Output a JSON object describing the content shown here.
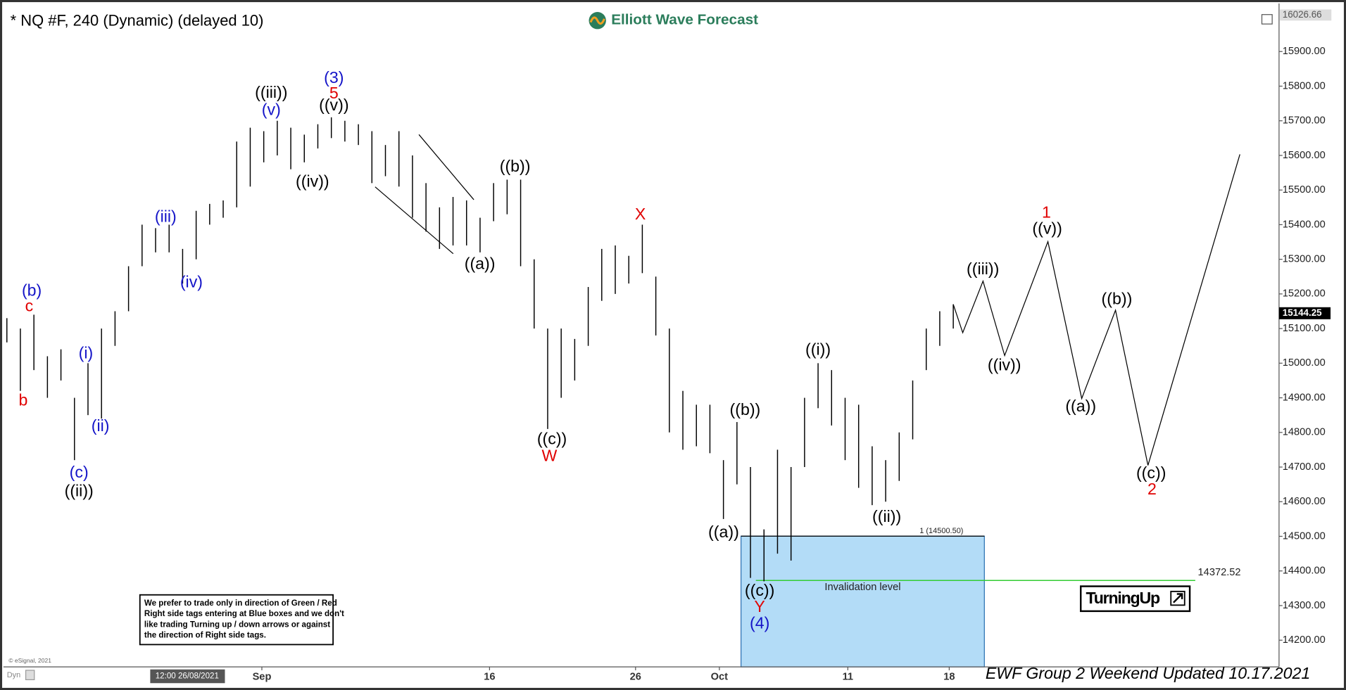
{
  "chart_data": {
    "type": "ohlc",
    "title": "* NQ #F, 240 (Dynamic) (delayed 10)",
    "logo": "Elliott Wave Forecast",
    "xlim": [
      0,
      94
    ],
    "ylim": [
      14123,
      16029
    ],
    "xticks": [
      {
        "value": 18.86,
        "label": "Sep"
      },
      {
        "value": 35.7,
        "label": "16"
      },
      {
        "value": 46.5,
        "label": "26"
      },
      {
        "value": 52.7,
        "label": "Oct"
      },
      {
        "value": 62.2,
        "label": "11"
      },
      {
        "value": 69.7,
        "label": "18"
      }
    ],
    "yticks": [
      {
        "value": 14200,
        "label": "14200.00"
      },
      {
        "value": 14300,
        "label": "14300.00"
      },
      {
        "value": 14400,
        "label": "14400.00"
      },
      {
        "value": 14500,
        "label": "14500.00"
      },
      {
        "value": 14600,
        "label": "14600.00"
      },
      {
        "value": 14700,
        "label": "14700.00"
      },
      {
        "value": 14800,
        "label": "14800.00"
      },
      {
        "value": 14900,
        "label": "14900.00"
      },
      {
        "value": 15000,
        "label": "15000.00"
      },
      {
        "value": 15100,
        "label": "15100.00"
      },
      {
        "value": 15200,
        "label": "15200.00"
      },
      {
        "value": 15300,
        "label": "15300.00"
      },
      {
        "value": 15400,
        "label": "15400.00"
      },
      {
        "value": 15500,
        "label": "15500.00"
      },
      {
        "value": 15600,
        "label": "15600.00"
      },
      {
        "value": 15700,
        "label": "15700.00"
      },
      {
        "value": 15800,
        "label": "15800.00"
      },
      {
        "value": 15900,
        "label": "15900.00"
      }
    ],
    "bars": {
      "color": "#000000",
      "high": [
        15130,
        15100,
        15140,
        15020,
        15040,
        14900,
        15000,
        15100,
        15150,
        15280,
        15400,
        15390,
        15400,
        15330,
        15440,
        15460,
        15470,
        15640,
        15680,
        15670,
        15700,
        15680,
        15660,
        15690,
        15710,
        15700,
        15690,
        15670,
        15630,
        15670,
        15600,
        15520,
        15450,
        15480,
        15470,
        15420,
        15520,
        15530,
        15530,
        15300,
        15100,
        15100,
        15070,
        15220,
        15330,
        15340,
        15310,
        15400,
        15250,
        15100,
        14920,
        14880,
        14880,
        14720,
        14830,
        14700,
        14520,
        14750,
        14700,
        14900,
        15000,
        14980,
        14900,
        14880,
        14760,
        14720,
        14800,
        14950,
        15100,
        15150,
        15170
      ],
      "low": [
        15060,
        14920,
        14980,
        14900,
        14950,
        14720,
        14850,
        14840,
        15050,
        15150,
        15280,
        15320,
        15320,
        15230,
        15300,
        15400,
        15420,
        15450,
        15510,
        15580,
        15600,
        15560,
        15580,
        15620,
        15650,
        15640,
        15630,
        15520,
        15540,
        15510,
        15420,
        15380,
        15330,
        15340,
        15340,
        15320,
        15410,
        15430,
        15280,
        15100,
        14810,
        14900,
        14950,
        15050,
        15180,
        15200,
        15230,
        15260,
        15080,
        14800,
        14750,
        14760,
        14740,
        14550,
        14650,
        14380,
        14370,
        14450,
        14430,
        14700,
        14870,
        14820,
        14720,
        14640,
        14590,
        14600,
        14660,
        14780,
        14980,
        15050,
        15100
      ]
    },
    "projection": {
      "color": "#000000",
      "x": [
        70,
        70.7,
        72.2,
        73.8,
        77,
        79.5,
        82,
        84.4,
        91.2
      ],
      "values": [
        15170,
        15088,
        15237,
        15022,
        15351,
        14898,
        15153,
        14705,
        15603
      ]
    },
    "target_box": {
      "color": "#b3dcf7",
      "label": "1 (14500.50)",
      "top": 14500.5,
      "x": [
        54.3,
        72.3
      ]
    },
    "invalidation": {
      "label": "Invalidation level",
      "value": 14372.52,
      "color": "#33cc33",
      "x": [
        55.4,
        87.9
      ]
    },
    "last_price": 15144.25,
    "max_price": 16026.66,
    "wave_labels": [
      {
        "text": "(b)",
        "color": "#1414c8"
      },
      {
        "text": "c",
        "color": "#e00000"
      },
      {
        "text": "b",
        "color": "#e00000"
      },
      {
        "text": "(c)",
        "color": "#1414c8"
      },
      {
        "text": "((ii))",
        "color": "#000000"
      },
      {
        "text": "(i)",
        "color": "#1414c8"
      },
      {
        "text": "(ii)",
        "color": "#1414c8"
      },
      {
        "text": "(iii)",
        "color": "#1414c8"
      },
      {
        "text": "(iv)",
        "color": "#1414c8"
      },
      {
        "text": "((iii))",
        "color": "#000000"
      },
      {
        "text": "(v)",
        "color": "#1414c8"
      },
      {
        "text": "(3)",
        "color": "#1414c8"
      },
      {
        "text": "5",
        "color": "#e00000"
      },
      {
        "text": "((v))",
        "color": "#000000"
      },
      {
        "text": "((iv))",
        "color": "#000000"
      },
      {
        "text": "((a))",
        "color": "#000000"
      },
      {
        "text": "((b))",
        "color": "#000000"
      },
      {
        "text": "((c))",
        "color": "#000000"
      },
      {
        "text": "W",
        "color": "#e00000"
      },
      {
        "text": "X",
        "color": "#e00000"
      },
      {
        "text": "((a))",
        "color": "#000000"
      },
      {
        "text": "((b))",
        "color": "#000000"
      },
      {
        "text": "((c))",
        "color": "#000000"
      },
      {
        "text": "Y",
        "color": "#e00000"
      },
      {
        "text": "(4)",
        "color": "#1414c8"
      },
      {
        "text": "((i))",
        "color": "#000000"
      },
      {
        "text": "((ii))",
        "color": "#000000"
      },
      {
        "text": "((iii))",
        "color": "#000000"
      },
      {
        "text": "((iv))",
        "color": "#000000"
      },
      {
        "text": "1",
        "color": "#e00000"
      },
      {
        "text": "((v))",
        "color": "#000000"
      },
      {
        "text": "((a))",
        "color": "#000000"
      },
      {
        "text": "((b))",
        "color": "#000000"
      },
      {
        "text": "((c))",
        "color": "#000000"
      },
      {
        "text": "2",
        "color": "#e00000"
      }
    ],
    "note": [
      "We prefer to trade only in direction of Green / Red",
      "Right side tags entering at Blue boxes and we don't",
      "like trading Turning up / down arrows or against",
      "the direction of Right side tags."
    ],
    "signal": "TurningUp",
    "footer": "EWF Group 2 Weekend Updated 10.17.2021",
    "copyright": "© eSignal, 2021",
    "cursor_time": "12:00 26/08/2021",
    "mode": "Dyn"
  }
}
